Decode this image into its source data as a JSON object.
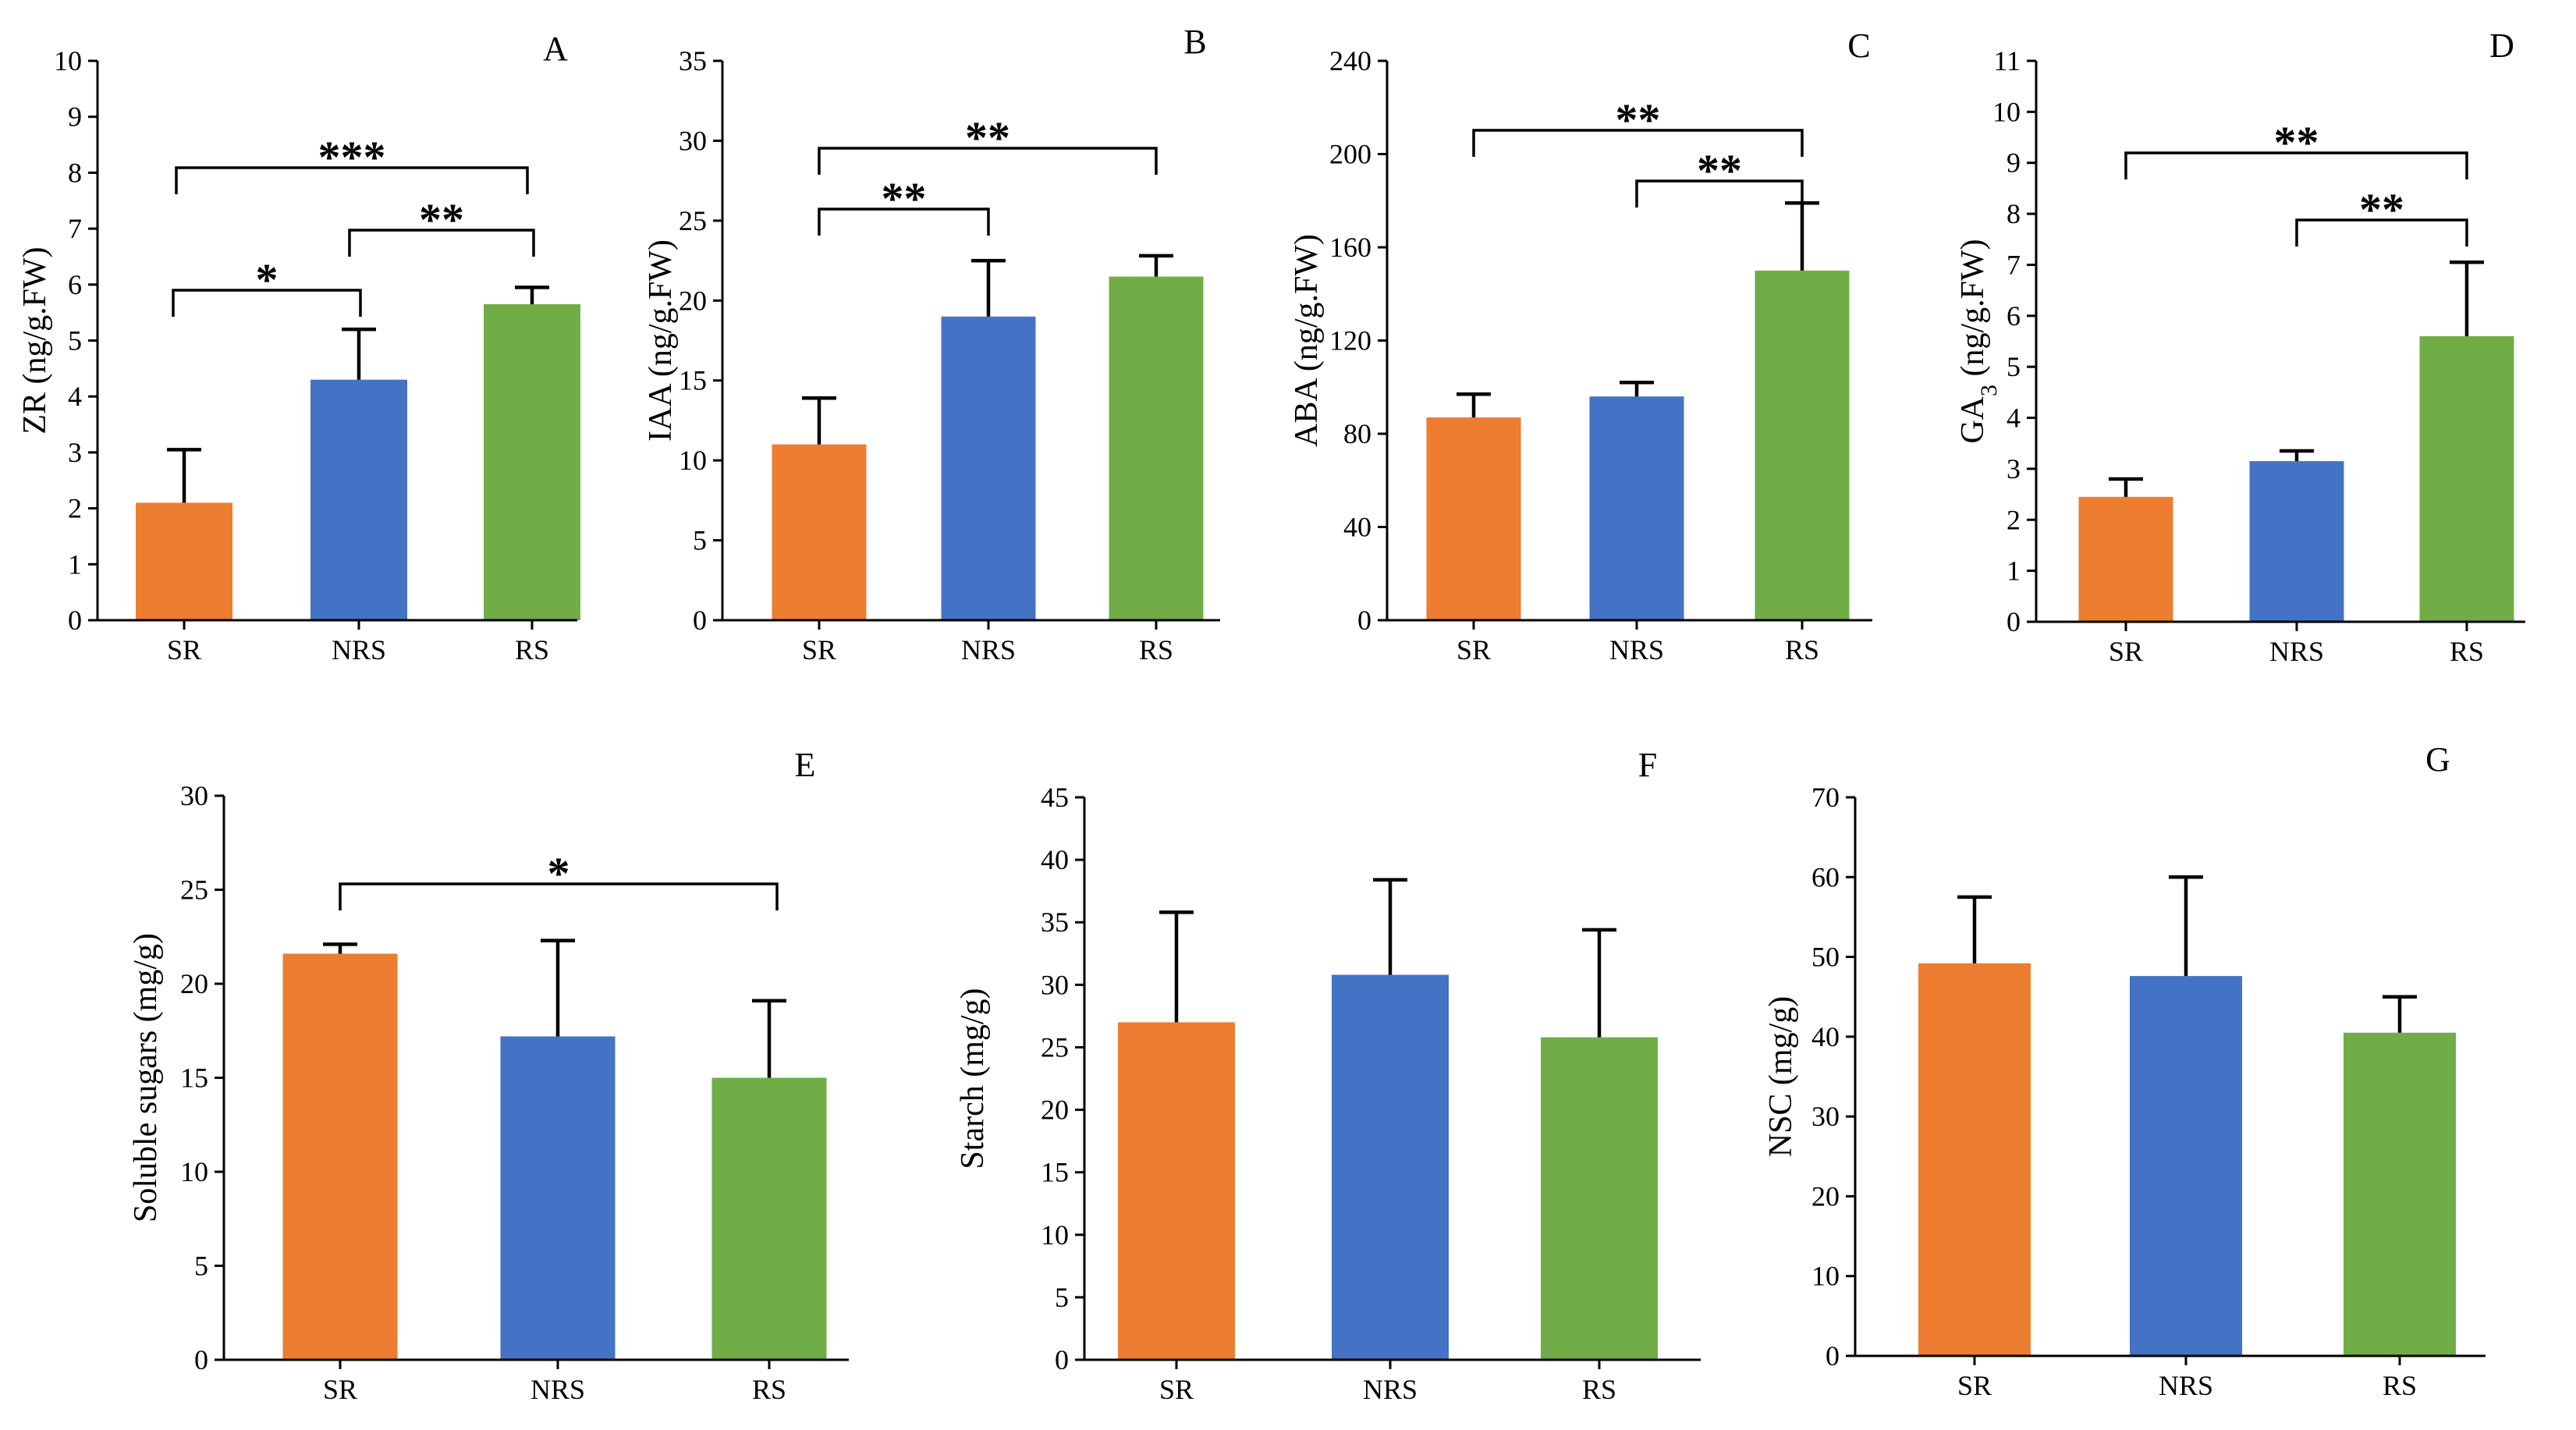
{
  "colors": {
    "SR": "#ED7D31",
    "NRS": "#4472C4",
    "RS": "#70AD47"
  },
  "chart_data": [
    {
      "panel": "A",
      "type": "bar",
      "categories": [
        "SR",
        "NRS",
        "RS"
      ],
      "values": [
        2.1,
        4.3,
        5.65
      ],
      "errors": [
        0.95,
        0.9,
        0.3
      ],
      "ylabel": "ZR (ng/g.FW)",
      "ylim": [
        0,
        10
      ],
      "yticks": [
        "0",
        "1",
        "2",
        "3",
        "4",
        "5",
        "6",
        "7",
        "8",
        "9",
        "10"
      ],
      "significance": [
        {
          "from": 0,
          "to": 1,
          "label": "*"
        },
        {
          "from": 1,
          "to": 2,
          "label": "**"
        },
        {
          "from": 0,
          "to": 2,
          "label": "***"
        }
      ]
    },
    {
      "panel": "B",
      "type": "bar",
      "categories": [
        "SR",
        "NRS",
        "RS"
      ],
      "values": [
        11.0,
        19.0,
        21.5
      ],
      "errors": [
        2.9,
        3.5,
        1.3
      ],
      "ylabel": "IAA (ng/g.FW)",
      "ylim": [
        0,
        35
      ],
      "yticks": [
        "0",
        "5",
        "10",
        "15",
        "20",
        "25",
        "30",
        "35"
      ],
      "significance": [
        {
          "from": 0,
          "to": 1,
          "label": "**"
        },
        {
          "from": 0,
          "to": 2,
          "label": "**"
        }
      ]
    },
    {
      "panel": "C",
      "type": "bar",
      "categories": [
        "SR",
        "NRS",
        "RS"
      ],
      "values": [
        87,
        96,
        150
      ],
      "errors": [
        10,
        6,
        29
      ],
      "ylabel": "ABA (ng/g.FW)",
      "ylim": [
        0,
        240
      ],
      "yticks": [
        "0",
        "40",
        "80",
        "120",
        "160",
        "200",
        "240"
      ],
      "significance": [
        {
          "from": 1,
          "to": 2,
          "label": "**"
        },
        {
          "from": 0,
          "to": 2,
          "label": "**"
        }
      ]
    },
    {
      "panel": "D",
      "type": "bar",
      "categories": [
        "SR",
        "NRS",
        "RS"
      ],
      "values": [
        2.45,
        3.15,
        5.6
      ],
      "errors": [
        0.35,
        0.2,
        1.45
      ],
      "ylabel": "GA",
      "ylabel_sub": "3",
      "ylabel_rest": " (ng/g.FW)",
      "ylim": [
        0,
        11
      ],
      "yticks": [
        "0",
        "1",
        "2",
        "3",
        "4",
        "5",
        "6",
        "7",
        "8",
        "9",
        "10",
        "11"
      ],
      "significance": [
        {
          "from": 1,
          "to": 2,
          "label": "**"
        },
        {
          "from": 0,
          "to": 2,
          "label": "**"
        }
      ]
    },
    {
      "panel": "E",
      "type": "bar",
      "categories": [
        "SR",
        "NRS",
        "RS"
      ],
      "values": [
        21.6,
        17.2,
        15.0
      ],
      "errors": [
        0.5,
        5.1,
        4.1
      ],
      "ylabel": "Soluble sugars (mg/g)",
      "ylim": [
        0,
        30
      ],
      "yticks": [
        "0",
        "5",
        "10",
        "15",
        "20",
        "25",
        "30"
      ],
      "significance": [
        {
          "from": 0,
          "to": 2,
          "label": "*"
        }
      ]
    },
    {
      "panel": "F",
      "type": "bar",
      "categories": [
        "SR",
        "NRS",
        "RS"
      ],
      "values": [
        27.0,
        30.8,
        25.8
      ],
      "errors": [
        8.8,
        7.6,
        8.6
      ],
      "ylabel": "Starch (mg/g)",
      "ylim": [
        0,
        45
      ],
      "yticks": [
        "0",
        "5",
        "10",
        "15",
        "20",
        "25",
        "30",
        "35",
        "40",
        "45"
      ],
      "significance": []
    },
    {
      "panel": "G",
      "type": "bar",
      "categories": [
        "SR",
        "NRS",
        "RS"
      ],
      "values": [
        49.2,
        47.6,
        40.5
      ],
      "errors": [
        8.3,
        12.4,
        4.5
      ],
      "ylabel": "NSC (mg/g)",
      "ylim": [
        0,
        70
      ],
      "yticks": [
        "0",
        "10",
        "20",
        "30",
        "40",
        "50",
        "60",
        "70"
      ],
      "significance": []
    }
  ]
}
